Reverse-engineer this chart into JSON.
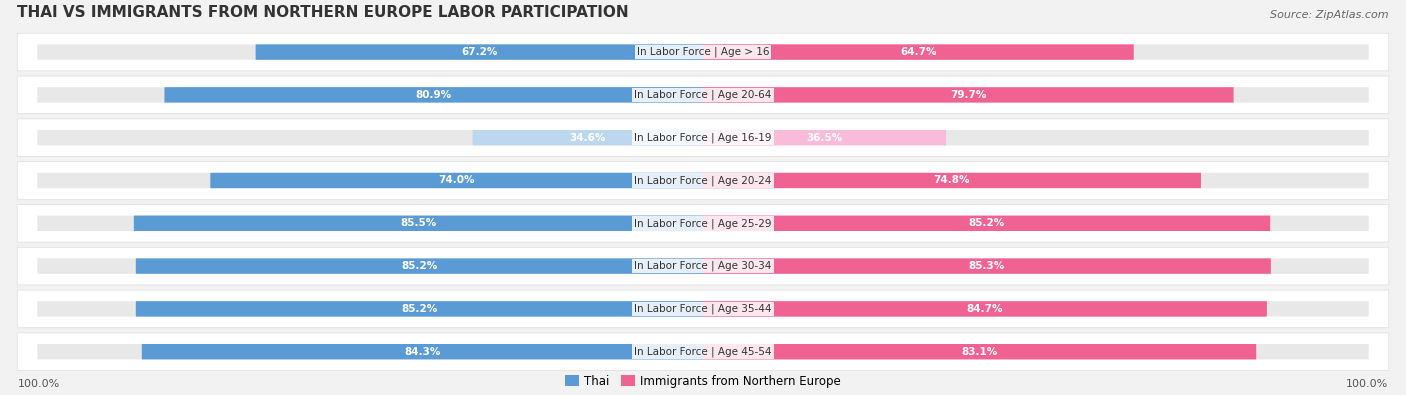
{
  "title": "THAI VS IMMIGRANTS FROM NORTHERN EUROPE LABOR PARTICIPATION",
  "source": "Source: ZipAtlas.com",
  "categories": [
    "In Labor Force | Age > 16",
    "In Labor Force | Age 20-64",
    "In Labor Force | Age 16-19",
    "In Labor Force | Age 20-24",
    "In Labor Force | Age 25-29",
    "In Labor Force | Age 30-34",
    "In Labor Force | Age 35-44",
    "In Labor Force | Age 45-54"
  ],
  "thai_values": [
    67.2,
    80.9,
    34.6,
    74.0,
    85.5,
    85.2,
    85.2,
    84.3
  ],
  "immigrant_values": [
    64.7,
    79.7,
    36.5,
    74.8,
    85.2,
    85.3,
    84.7,
    83.1
  ],
  "thai_color": "#5B9BD5",
  "thai_light_color": "#BDD7EE",
  "immigrant_color": "#F06292",
  "immigrant_light_color": "#F8BBD9",
  "background_color": "#F2F2F2",
  "bar_bg_color": "#E8E8E8",
  "row_bg_color": "#FAFAFA",
  "max_value": 100.0,
  "legend_thai": "Thai",
  "legend_immigrant": "Immigrants from Northern Europe",
  "x_left_label": "100.0%",
  "x_right_label": "100.0%"
}
